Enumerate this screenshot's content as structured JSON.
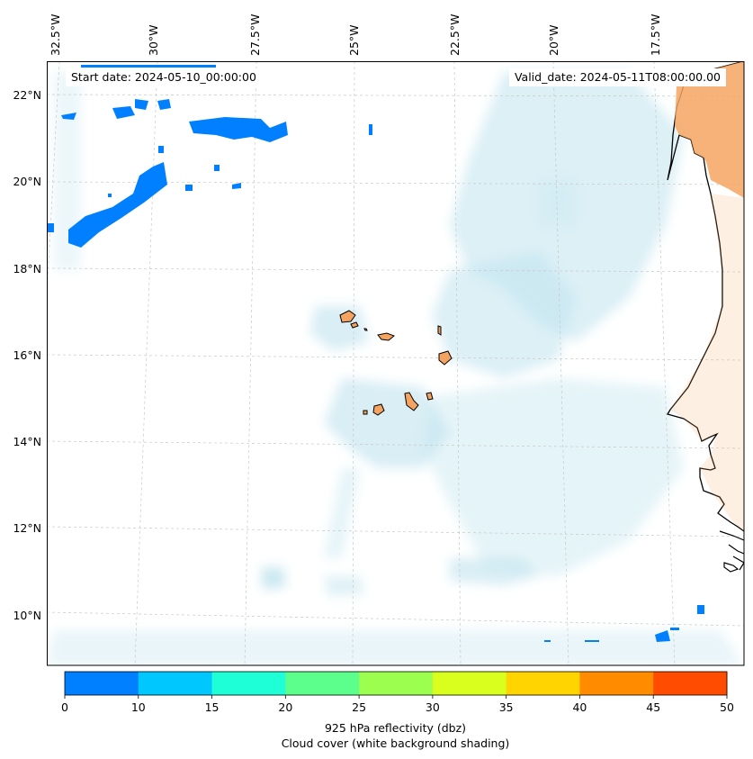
{
  "header": {
    "start_date": "Start date: 2024-05-10_00:00:00",
    "valid_date": "Valid_date: 2024-05-11T08:00:00.00"
  },
  "axes": {
    "lon_labels": [
      "32.5°W",
      "30°W",
      "27.5°W",
      "25°W",
      "22.5°W",
      "20°W",
      "17.5°W"
    ],
    "lat_labels": [
      "22°N",
      "20°N",
      "18°N",
      "16°N",
      "14°N",
      "12°N",
      "10°N"
    ]
  },
  "colorbar": {
    "ticks": [
      "0",
      "10",
      "15",
      "20",
      "25",
      "30",
      "35",
      "40",
      "45",
      "50"
    ],
    "colors": [
      "#0080ff",
      "#00c8ff",
      "#1effd8",
      "#5cff8c",
      "#9cff50",
      "#d8ff1e",
      "#ffd400",
      "#ff8c00",
      "#ff4c00"
    ],
    "label": "925 hPa reflectivity (dbz)",
    "sublabel": "Cloud cover (white background shading)"
  },
  "map_colors": {
    "land": "#f4a460",
    "cloud": "#bfe3ee",
    "grid": "#c8c8c8",
    "coast": "#000000"
  }
}
